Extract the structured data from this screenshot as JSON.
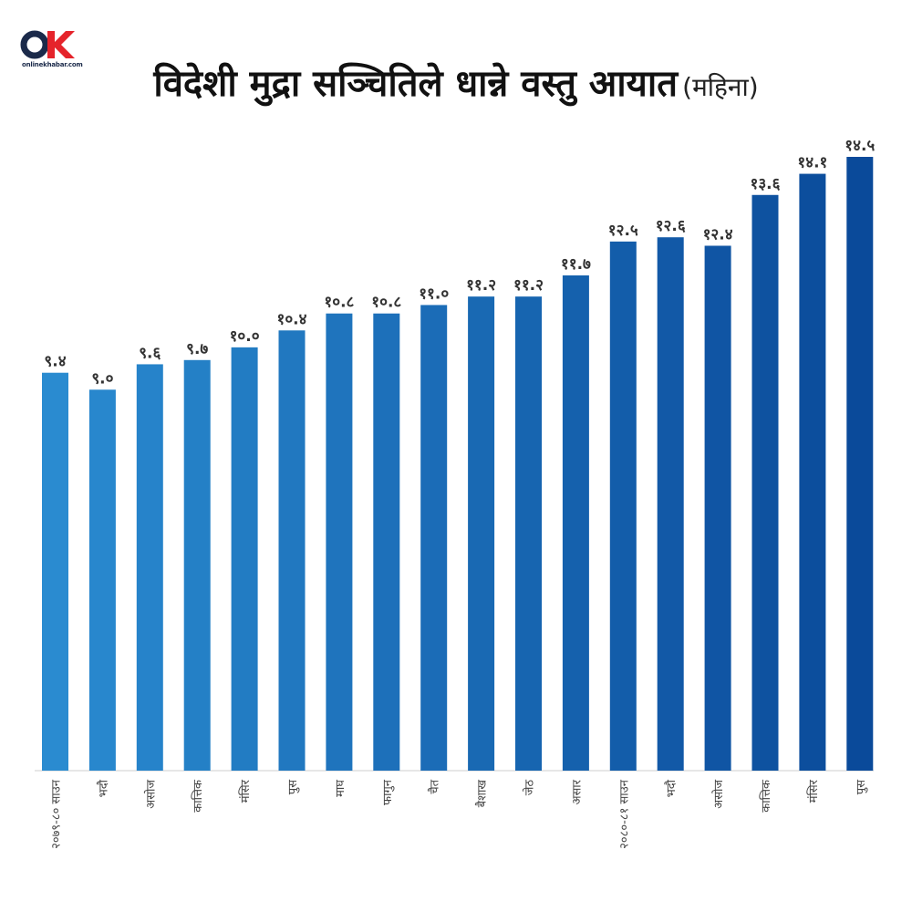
{
  "logo": {
    "text": "onlinekhabar.com",
    "icon": "onlinekhabar-logo-icon"
  },
  "title": {
    "main": "विदेशी मुद्रा सञ्चितिले धान्ने वस्तु आयात",
    "sub": "(महिना)"
  },
  "colors": {
    "bar_light": "#2a8bd0",
    "bar_dark": "#0a4a9a",
    "label": "#333333",
    "axis": "#cfcfcf"
  },
  "chart_data": {
    "type": "bar",
    "title": "विदेशी मुद्रा सञ्चितिले धान्ने वस्तु आयात (महिना)",
    "categories": [
      "२०७९-८० साउन",
      "भदौ",
      "असोज",
      "कात्तिक",
      "मंसिर",
      "पुस",
      "माघ",
      "फागुन",
      "चैत",
      "बैशाख",
      "जेठ",
      "असार",
      "२०८०-८१ साउन",
      "भदौ",
      "असोज",
      "कात्तिक",
      "मंसिर",
      "पुस"
    ],
    "values": [
      9.4,
      9.0,
      9.6,
      9.7,
      10.0,
      10.4,
      10.8,
      10.8,
      11.0,
      11.2,
      11.2,
      11.7,
      12.5,
      12.6,
      12.4,
      13.6,
      14.1,
      14.5
    ],
    "value_labels": [
      "९.४",
      "९.०",
      "९.६",
      "९.७",
      "१०.०",
      "१०.४",
      "१०.८",
      "१०.८",
      "११.०",
      "११.२",
      "११.२",
      "११.७",
      "१२.५",
      "१२.६",
      "१२.४",
      "१३.६",
      "१४.१",
      "१४.५"
    ],
    "xlabel": "",
    "ylabel": "",
    "ylim": [
      0,
      14.5
    ],
    "grid": false,
    "legend": "none"
  }
}
